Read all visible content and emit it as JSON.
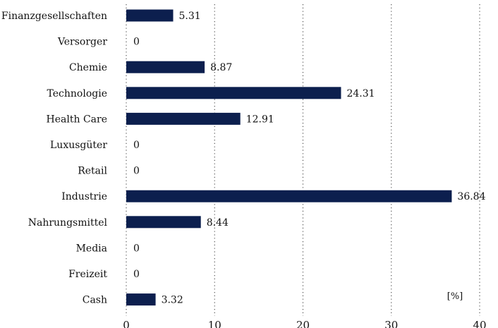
{
  "chart_data": {
    "type": "bar",
    "orientation": "horizontal",
    "categories": [
      "Finanzgesellschaften",
      "Versorger",
      "Chemie",
      "Technologie",
      "Health Care",
      "Luxusgüter",
      "Retail",
      "Industrie",
      "Nahrungsmittel",
      "Media",
      "Freizeit",
      "Cash"
    ],
    "values": [
      5.31,
      0,
      8.87,
      24.31,
      12.91,
      0,
      0,
      36.84,
      8.44,
      0,
      0,
      3.32
    ],
    "value_labels": [
      "5.31",
      "0",
      "8.87",
      "24.31",
      "12.91",
      "0",
      "0",
      "36.84",
      "8.44",
      "0",
      "0",
      "3.32"
    ],
    "title": "",
    "xlabel": "",
    "ylabel": "",
    "unit_label": "[%]",
    "xlim": [
      0,
      40
    ],
    "xticks": [
      0,
      10,
      20,
      30,
      40
    ],
    "grid": "vertical dotted",
    "legend": "none",
    "bar_color": "#0c1f4e",
    "grid_color": "#555555"
  }
}
